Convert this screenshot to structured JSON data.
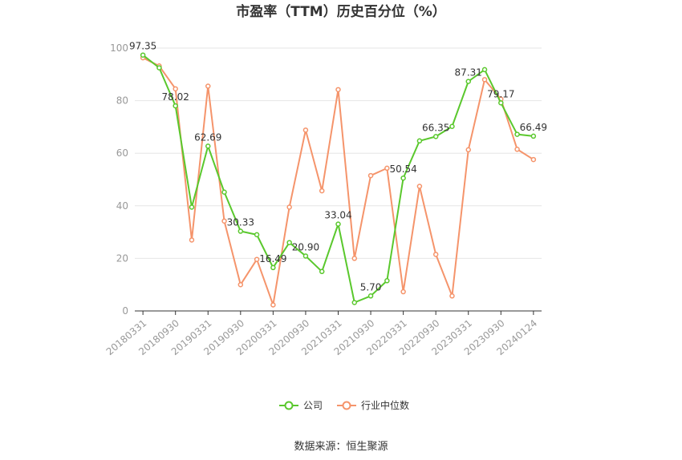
{
  "chart_data": {
    "type": "line",
    "title": "市盈率（TTM）历史百分位（%）",
    "xlabel": "",
    "ylabel": "",
    "ylim": [
      0,
      100
    ],
    "yticks": [
      0,
      20,
      40,
      60,
      80,
      100
    ],
    "x": [
      "20180331",
      "20180630",
      "20180930",
      "20181231",
      "20190331",
      "20190630",
      "20190930",
      "20191231",
      "20200331",
      "20200630",
      "20200930",
      "20201231",
      "20210331",
      "20210630",
      "20210930",
      "20211231",
      "20220331",
      "20220630",
      "20220930",
      "20221231",
      "20230331",
      "20230630",
      "20230930",
      "20231231",
      "20240124"
    ],
    "xtick_labels": [
      "20180331",
      "20180930",
      "20190331",
      "20190930",
      "20200331",
      "20200930",
      "20210331",
      "20210930",
      "20220331",
      "20220930",
      "20230331",
      "20230930",
      "20240124"
    ],
    "series": [
      {
        "name": "公司",
        "color": "#5ac82d",
        "values": [
          97.35,
          92.5,
          78.02,
          39.5,
          62.69,
          45.2,
          30.33,
          29.0,
          16.49,
          26.0,
          20.9,
          15.0,
          33.04,
          3.2,
          5.7,
          11.5,
          50.54,
          64.7,
          66.35,
          70.2,
          87.31,
          91.8,
          79.17,
          67.2,
          66.49
        ]
      },
      {
        "name": "行业中位数",
        "color": "#f5946b",
        "values": [
          96.3,
          93.2,
          84.5,
          27.0,
          85.5,
          34.2,
          10.0,
          19.6,
          2.3,
          39.5,
          68.8,
          45.7,
          84.2,
          20.0,
          51.5,
          54.3,
          7.3,
          47.4,
          21.5,
          5.7,
          61.3,
          88.0,
          80.6,
          61.5,
          57.6
        ]
      }
    ],
    "data_labels": [
      {
        "series": 0,
        "index": 0,
        "text": "97.35"
      },
      {
        "series": 0,
        "index": 2,
        "text": "78.02"
      },
      {
        "series": 0,
        "index": 4,
        "text": "62.69"
      },
      {
        "series": 0,
        "index": 6,
        "text": "30.33"
      },
      {
        "series": 0,
        "index": 8,
        "text": "16.49"
      },
      {
        "series": 0,
        "index": 10,
        "text": "20.90"
      },
      {
        "series": 0,
        "index": 12,
        "text": "33.04"
      },
      {
        "series": 0,
        "index": 14,
        "text": "5.70"
      },
      {
        "series": 0,
        "index": 16,
        "text": "50.54"
      },
      {
        "series": 0,
        "index": 18,
        "text": "66.35"
      },
      {
        "series": 0,
        "index": 20,
        "text": "87.31"
      },
      {
        "series": 0,
        "index": 22,
        "text": "79.17"
      },
      {
        "series": 0,
        "index": 24,
        "text": "66.49"
      }
    ],
    "grid": true,
    "legend_position": "bottom"
  },
  "source": "数据来源：恒生聚源"
}
